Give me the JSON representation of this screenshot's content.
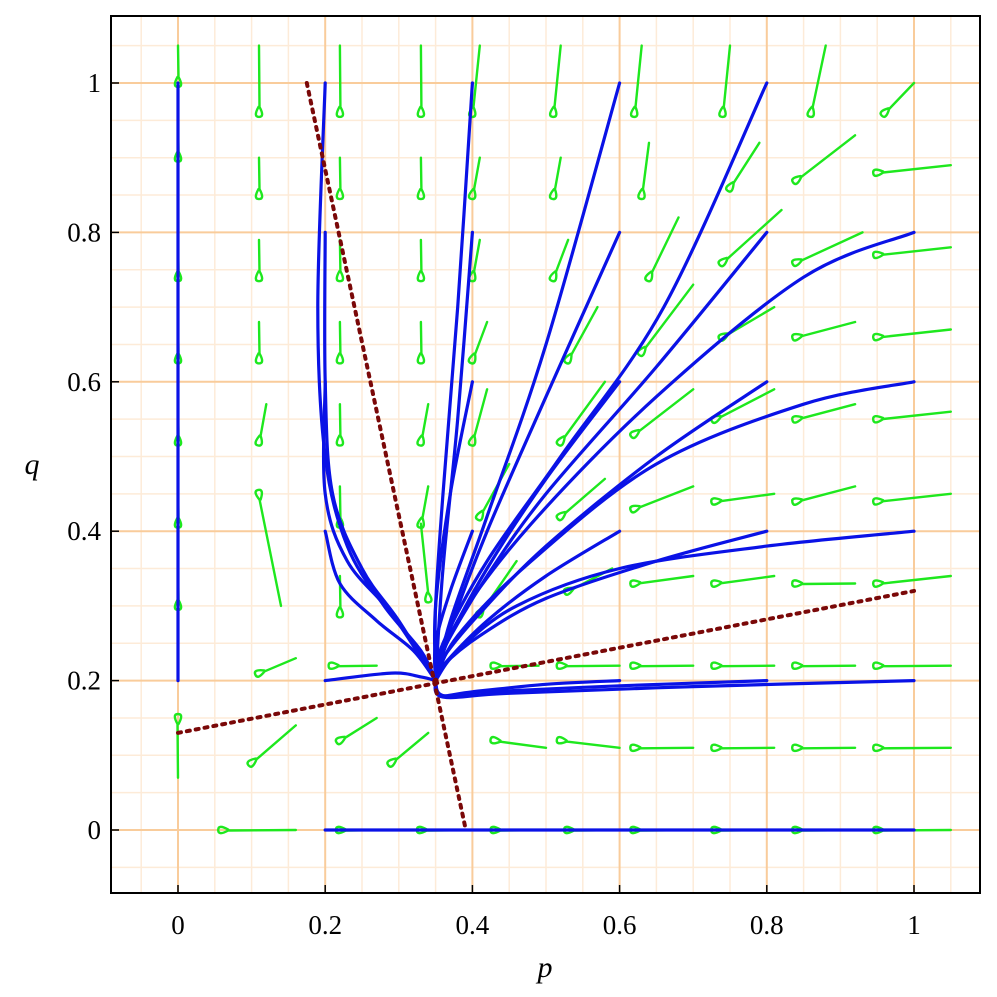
{
  "chart_data": {
    "type": "phase_portrait",
    "title": "",
    "xlabel": "p",
    "ylabel": "q",
    "xlim": [
      -0.09,
      1.09
    ],
    "ylim": [
      -0.09,
      1.09
    ],
    "x_ticks": [
      0,
      0.2,
      0.4,
      0.6,
      0.8,
      1
    ],
    "y_ticks": [
      0,
      0.2,
      0.4,
      0.6,
      0.8,
      1
    ],
    "x_tick_labels": [
      "0",
      "0.2",
      "0.4",
      "0.6",
      "0.8",
      "1"
    ],
    "y_tick_labels": [
      "0",
      "0.2",
      "0.4",
      "0.6",
      "0.8",
      "1"
    ],
    "grid": true,
    "colors": {
      "grid_major": "#f9cc9b",
      "grid_minor": "#fdebd8",
      "trajectory": "#0a12e6",
      "arrow": "#1ee81e",
      "separatrix": "#7a0808",
      "frame": "#000000"
    },
    "equilibrium": {
      "p": 0.35,
      "q": 0.2
    },
    "separatrices": [
      {
        "points": [
          [
            0.175,
            1.0
          ],
          [
            0.39,
            0.005
          ]
        ]
      },
      {
        "points": [
          [
            0.0,
            0.13
          ],
          [
            1.0,
            0.32
          ]
        ]
      }
    ],
    "direction_field_arrows": [
      [
        0.0,
        1.0,
        0.0,
        1.05
      ],
      [
        0.0,
        0.9,
        0.0,
        0.95
      ],
      [
        0.0,
        0.74,
        0.0,
        0.79
      ],
      [
        0.0,
        0.63,
        0.0,
        0.68
      ],
      [
        0.0,
        0.52,
        0.0,
        0.57
      ],
      [
        0.0,
        0.41,
        0.0,
        0.46
      ],
      [
        0.0,
        0.3,
        0.0,
        0.35
      ],
      [
        0.0,
        0.15,
        0.0,
        0.07
      ],
      [
        0.11,
        0.21,
        0.16,
        0.23
      ],
      [
        0.1,
        0.09,
        0.16,
        0.14
      ],
      [
        0.06,
        0.0,
        0.16,
        0.0
      ],
      [
        0.11,
        0.45,
        0.14,
        0.3
      ],
      [
        0.11,
        0.52,
        0.12,
        0.57
      ],
      [
        0.11,
        0.63,
        0.11,
        0.68
      ],
      [
        0.11,
        0.74,
        0.11,
        0.79
      ],
      [
        0.11,
        0.85,
        0.11,
        0.9
      ],
      [
        0.11,
        0.96,
        0.11,
        1.05
      ],
      [
        0.22,
        0.12,
        0.27,
        0.15
      ],
      [
        0.21,
        0.22,
        0.27,
        0.22
      ],
      [
        0.22,
        0.0,
        0.27,
        0.0
      ],
      [
        0.22,
        0.29,
        0.22,
        0.34
      ],
      [
        0.22,
        0.41,
        0.22,
        0.46
      ],
      [
        0.22,
        0.52,
        0.22,
        0.57
      ],
      [
        0.22,
        0.63,
        0.22,
        0.68
      ],
      [
        0.22,
        0.74,
        0.22,
        0.79
      ],
      [
        0.22,
        0.85,
        0.22,
        0.9
      ],
      [
        0.22,
        0.96,
        0.22,
        1.05
      ],
      [
        0.29,
        0.09,
        0.34,
        0.13
      ],
      [
        0.33,
        0.0,
        0.4,
        0.0
      ],
      [
        0.34,
        0.31,
        0.33,
        0.41
      ],
      [
        0.33,
        0.41,
        0.34,
        0.46
      ],
      [
        0.33,
        0.52,
        0.34,
        0.57
      ],
      [
        0.33,
        0.63,
        0.33,
        0.68
      ],
      [
        0.33,
        0.74,
        0.33,
        0.79
      ],
      [
        0.33,
        0.85,
        0.33,
        0.9
      ],
      [
        0.33,
        0.96,
        0.33,
        1.05
      ],
      [
        0.43,
        0.22,
        0.49,
        0.22
      ],
      [
        0.43,
        0.12,
        0.5,
        0.11
      ],
      [
        0.43,
        0.0,
        0.5,
        0.0
      ],
      [
        0.41,
        0.29,
        0.46,
        0.36
      ],
      [
        0.41,
        0.42,
        0.45,
        0.49
      ],
      [
        0.4,
        0.52,
        0.42,
        0.59
      ],
      [
        0.4,
        0.63,
        0.42,
        0.68
      ],
      [
        0.4,
        0.74,
        0.41,
        0.79
      ],
      [
        0.4,
        0.85,
        0.41,
        0.9
      ],
      [
        0.4,
        0.96,
        0.41,
        1.05
      ],
      [
        0.52,
        0.22,
        0.6,
        0.22
      ],
      [
        0.52,
        0.12,
        0.6,
        0.11
      ],
      [
        0.53,
        0.0,
        0.6,
        0.0
      ],
      [
        0.53,
        0.32,
        0.59,
        0.35
      ],
      [
        0.52,
        0.42,
        0.58,
        0.47
      ],
      [
        0.52,
        0.52,
        0.58,
        0.6
      ],
      [
        0.53,
        0.63,
        0.57,
        0.7
      ],
      [
        0.51,
        0.74,
        0.53,
        0.79
      ],
      [
        0.51,
        0.85,
        0.52,
        0.9
      ],
      [
        0.51,
        0.96,
        0.52,
        1.05
      ],
      [
        0.62,
        0.22,
        0.7,
        0.22
      ],
      [
        0.62,
        0.11,
        0.7,
        0.11
      ],
      [
        0.62,
        0.0,
        0.7,
        0.0
      ],
      [
        0.62,
        0.33,
        0.7,
        0.34
      ],
      [
        0.62,
        0.43,
        0.7,
        0.46
      ],
      [
        0.62,
        0.53,
        0.7,
        0.59
      ],
      [
        0.63,
        0.64,
        0.7,
        0.73
      ],
      [
        0.64,
        0.74,
        0.68,
        0.82
      ],
      [
        0.63,
        0.85,
        0.64,
        0.92
      ],
      [
        0.62,
        0.96,
        0.63,
        1.05
      ],
      [
        0.73,
        0.22,
        0.81,
        0.22
      ],
      [
        0.73,
        0.11,
        0.81,
        0.11
      ],
      [
        0.73,
        0.0,
        0.81,
        0.0
      ],
      [
        0.73,
        0.33,
        0.81,
        0.34
      ],
      [
        0.73,
        0.44,
        0.81,
        0.45
      ],
      [
        0.73,
        0.55,
        0.81,
        0.59
      ],
      [
        0.74,
        0.66,
        0.81,
        0.7
      ],
      [
        0.74,
        0.76,
        0.82,
        0.83
      ],
      [
        0.75,
        0.86,
        0.79,
        0.92
      ],
      [
        0.74,
        0.96,
        0.75,
        1.05
      ],
      [
        0.84,
        0.22,
        0.92,
        0.22
      ],
      [
        0.84,
        0.11,
        0.92,
        0.11
      ],
      [
        0.84,
        0.0,
        0.92,
        0.0
      ],
      [
        0.84,
        0.33,
        0.92,
        0.33
      ],
      [
        0.84,
        0.44,
        0.92,
        0.46
      ],
      [
        0.84,
        0.55,
        0.92,
        0.57
      ],
      [
        0.84,
        0.66,
        0.92,
        0.68
      ],
      [
        0.84,
        0.76,
        0.93,
        0.8
      ],
      [
        0.84,
        0.87,
        0.92,
        0.93
      ],
      [
        0.86,
        0.96,
        0.88,
        1.05
      ],
      [
        0.95,
        0.22,
        1.05,
        0.22
      ],
      [
        0.95,
        0.11,
        1.05,
        0.11
      ],
      [
        0.95,
        0.0,
        1.05,
        0.0
      ],
      [
        0.95,
        0.33,
        1.05,
        0.34
      ],
      [
        0.95,
        0.44,
        1.05,
        0.45
      ],
      [
        0.95,
        0.55,
        1.05,
        0.56
      ],
      [
        0.95,
        0.66,
        1.05,
        0.67
      ],
      [
        0.95,
        0.77,
        1.05,
        0.78
      ],
      [
        0.95,
        0.88,
        1.05,
        0.89
      ],
      [
        0.96,
        0.96,
        1.0,
        1.0
      ]
    ],
    "trajectories": [
      {
        "points": [
          [
            0.0,
            1.0
          ],
          [
            0.0,
            0.65
          ],
          [
            0.0,
            0.35
          ],
          [
            0.0,
            0.2
          ]
        ]
      },
      {
        "points": [
          [
            0.2,
            0.0
          ],
          [
            0.6,
            0.0
          ],
          [
            1.0,
            0.0
          ]
        ]
      },
      {
        "points": [
          [
            0.2,
            0.2
          ],
          [
            0.29,
            0.21
          ],
          [
            0.33,
            0.205
          ],
          [
            0.35,
            0.2
          ]
        ]
      },
      {
        "points": [
          [
            0.6,
            0.2
          ],
          [
            0.5,
            0.195
          ],
          [
            0.4,
            0.185
          ],
          [
            0.355,
            0.18
          ],
          [
            0.35,
            0.2
          ]
        ]
      },
      {
        "points": [
          [
            0.8,
            0.2
          ],
          [
            0.6,
            0.193
          ],
          [
            0.42,
            0.185
          ],
          [
            0.36,
            0.18
          ],
          [
            0.35,
            0.2
          ]
        ]
      },
      {
        "points": [
          [
            1.0,
            0.2
          ],
          [
            0.7,
            0.192
          ],
          [
            0.45,
            0.183
          ],
          [
            0.36,
            0.178
          ],
          [
            0.35,
            0.2
          ]
        ]
      },
      {
        "points": [
          [
            0.2,
            1.0
          ],
          [
            0.19,
            0.7
          ],
          [
            0.2,
            0.5
          ],
          [
            0.23,
            0.38
          ],
          [
            0.28,
            0.3
          ],
          [
            0.33,
            0.24
          ],
          [
            0.35,
            0.2
          ]
        ]
      },
      {
        "points": [
          [
            0.2,
            0.8
          ],
          [
            0.2,
            0.6
          ],
          [
            0.21,
            0.45
          ],
          [
            0.25,
            0.35
          ],
          [
            0.3,
            0.28
          ],
          [
            0.35,
            0.2
          ]
        ]
      },
      {
        "points": [
          [
            0.2,
            0.6
          ],
          [
            0.2,
            0.45
          ],
          [
            0.23,
            0.36
          ],
          [
            0.29,
            0.29
          ],
          [
            0.35,
            0.2
          ]
        ]
      },
      {
        "points": [
          [
            0.2,
            0.4
          ],
          [
            0.22,
            0.33
          ],
          [
            0.27,
            0.28
          ],
          [
            0.32,
            0.24
          ],
          [
            0.35,
            0.2
          ]
        ]
      },
      {
        "points": [
          [
            0.4,
            1.0
          ],
          [
            0.38,
            0.7
          ],
          [
            0.36,
            0.45
          ],
          [
            0.35,
            0.3
          ],
          [
            0.35,
            0.2
          ]
        ]
      },
      {
        "points": [
          [
            0.4,
            0.8
          ],
          [
            0.38,
            0.55
          ],
          [
            0.36,
            0.35
          ],
          [
            0.35,
            0.2
          ]
        ]
      },
      {
        "points": [
          [
            0.4,
            0.6
          ],
          [
            0.37,
            0.45
          ],
          [
            0.35,
            0.3
          ],
          [
            0.35,
            0.2
          ]
        ]
      },
      {
        "points": [
          [
            0.4,
            0.4
          ],
          [
            0.37,
            0.32
          ],
          [
            0.35,
            0.25
          ],
          [
            0.35,
            0.2
          ]
        ]
      },
      {
        "points": [
          [
            0.6,
            1.0
          ],
          [
            0.5,
            0.65
          ],
          [
            0.42,
            0.42
          ],
          [
            0.37,
            0.28
          ],
          [
            0.35,
            0.2
          ]
        ]
      },
      {
        "points": [
          [
            0.6,
            0.8
          ],
          [
            0.5,
            0.58
          ],
          [
            0.42,
            0.4
          ],
          [
            0.37,
            0.27
          ],
          [
            0.35,
            0.2
          ]
        ]
      },
      {
        "points": [
          [
            0.6,
            0.6
          ],
          [
            0.5,
            0.47
          ],
          [
            0.42,
            0.35
          ],
          [
            0.36,
            0.24
          ],
          [
            0.35,
            0.2
          ]
        ]
      },
      {
        "points": [
          [
            0.6,
            0.4
          ],
          [
            0.5,
            0.34
          ],
          [
            0.42,
            0.28
          ],
          [
            0.36,
            0.22
          ],
          [
            0.35,
            0.2
          ]
        ]
      },
      {
        "points": [
          [
            0.8,
            1.0
          ],
          [
            0.66,
            0.7
          ],
          [
            0.52,
            0.5
          ],
          [
            0.42,
            0.36
          ],
          [
            0.36,
            0.25
          ],
          [
            0.35,
            0.2
          ]
        ]
      },
      {
        "points": [
          [
            0.8,
            0.8
          ],
          [
            0.65,
            0.62
          ],
          [
            0.5,
            0.45
          ],
          [
            0.42,
            0.34
          ],
          [
            0.36,
            0.24
          ],
          [
            0.35,
            0.2
          ]
        ]
      },
      {
        "points": [
          [
            0.8,
            0.6
          ],
          [
            0.65,
            0.5
          ],
          [
            0.5,
            0.38
          ],
          [
            0.41,
            0.29
          ],
          [
            0.36,
            0.23
          ],
          [
            0.35,
            0.2
          ]
        ]
      },
      {
        "points": [
          [
            0.8,
            0.4
          ],
          [
            0.65,
            0.36
          ],
          [
            0.5,
            0.31
          ],
          [
            0.41,
            0.26
          ],
          [
            0.36,
            0.22
          ],
          [
            0.35,
            0.2
          ]
        ]
      },
      {
        "points": [
          [
            1.0,
            0.8
          ],
          [
            0.85,
            0.74
          ],
          [
            0.65,
            0.58
          ],
          [
            0.48,
            0.41
          ],
          [
            0.38,
            0.28
          ],
          [
            0.35,
            0.2
          ]
        ]
      },
      {
        "points": [
          [
            1.0,
            0.6
          ],
          [
            0.85,
            0.57
          ],
          [
            0.65,
            0.49
          ],
          [
            0.48,
            0.36
          ],
          [
            0.38,
            0.26
          ],
          [
            0.35,
            0.2
          ]
        ]
      },
      {
        "points": [
          [
            1.0,
            0.4
          ],
          [
            0.8,
            0.38
          ],
          [
            0.6,
            0.35
          ],
          [
            0.46,
            0.3
          ],
          [
            0.38,
            0.24
          ],
          [
            0.35,
            0.2
          ]
        ]
      }
    ]
  }
}
